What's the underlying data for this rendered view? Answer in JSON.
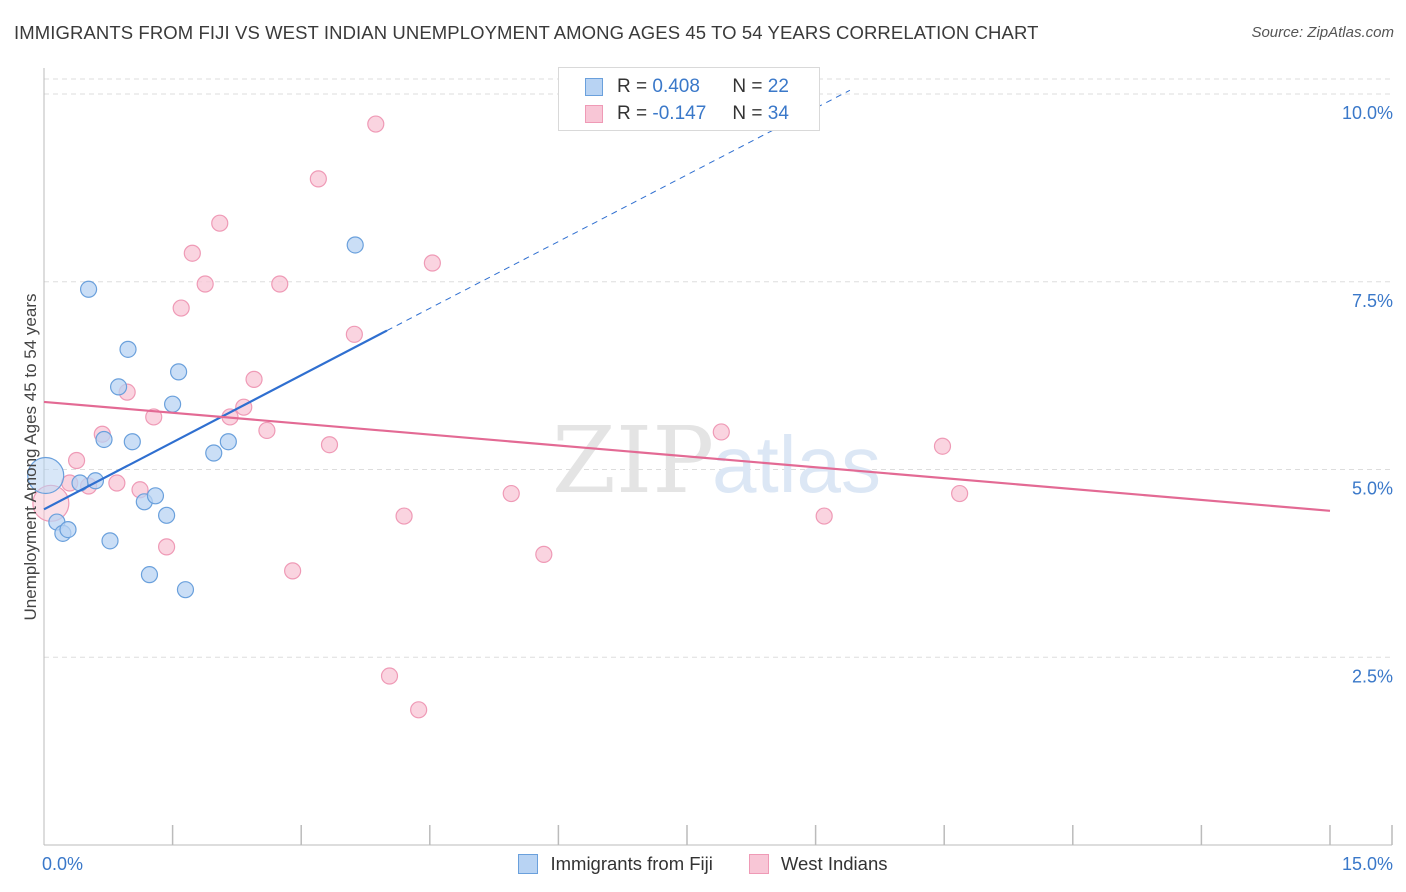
{
  "header": {
    "title": "IMMIGRANTS FROM FIJI VS WEST INDIAN UNEMPLOYMENT AMONG AGES 45 TO 54 YEARS CORRELATION CHART",
    "source": "Source: ZipAtlas.com"
  },
  "watermark": {
    "part1": "ZIP",
    "part2": "atlas"
  },
  "colors": {
    "fiji_fill": "#b8d3f3",
    "fiji_stroke": "#6aa0dc",
    "fiji_line": "#2f6fd0",
    "west_fill": "#f8c6d6",
    "west_stroke": "#ef9ab6",
    "west_line": "#e36a94",
    "axis_label": "#3a78c9",
    "grid": "#dddddd"
  },
  "legend": {
    "rows": [
      {
        "r_label": "R =",
        "r_value": "0.408",
        "n_label": "N =",
        "n_value": "22"
      },
      {
        "r_label": "R =",
        "r_value": "-0.147",
        "n_label": "N =",
        "n_value": "34"
      }
    ]
  },
  "chart_data": {
    "type": "scatter",
    "title": "IMMIGRANTS FROM FIJI VS WEST INDIAN UNEMPLOYMENT AMONG AGES 45 TO 54 YEARS CORRELATION CHART",
    "xlabel": "",
    "ylabel": "Unemployment Among Ages 45 to 54 years",
    "xlim": [
      0,
      15
    ],
    "ylim": [
      0,
      10.2
    ],
    "x_tick_labels": [
      {
        "value": 0,
        "label": "0.0%"
      },
      {
        "value": 15,
        "label": "15.0%"
      }
    ],
    "y_tick_labels": [
      {
        "value": 2.5,
        "label": "2.5%"
      },
      {
        "value": 5.0,
        "label": "5.0%"
      },
      {
        "value": 7.5,
        "label": "7.5%"
      },
      {
        "value": 10.0,
        "label": "10.0%"
      }
    ],
    "x_minor_ticks": [
      1.5,
      3.0,
      4.5,
      6.0,
      7.5,
      9.0,
      10.5,
      12.0,
      13.5
    ],
    "grid": true,
    "legend_position": "top-center",
    "series": [
      {
        "name": "Immigrants from Fiji",
        "r": 0.408,
        "n": 22,
        "trend": {
          "x0": 0.0,
          "y0": 4.47,
          "x1": 4.0,
          "y1": 6.85,
          "dashed_to_x": 9.4,
          "dashed_to_y": 10.05
        },
        "points": [
          {
            "x": 0.02,
            "y": 4.92,
            "size": "large"
          },
          {
            "x": 0.15,
            "y": 4.3
          },
          {
            "x": 0.22,
            "y": 4.15
          },
          {
            "x": 0.28,
            "y": 4.2
          },
          {
            "x": 0.42,
            "y": 4.82
          },
          {
            "x": 0.52,
            "y": 7.4
          },
          {
            "x": 0.6,
            "y": 4.85
          },
          {
            "x": 0.7,
            "y": 5.4
          },
          {
            "x": 0.77,
            "y": 4.05
          },
          {
            "x": 0.87,
            "y": 6.1
          },
          {
            "x": 0.98,
            "y": 6.6
          },
          {
            "x": 1.03,
            "y": 5.37
          },
          {
            "x": 1.17,
            "y": 4.57
          },
          {
            "x": 1.23,
            "y": 3.6
          },
          {
            "x": 1.3,
            "y": 4.65
          },
          {
            "x": 1.43,
            "y": 4.39
          },
          {
            "x": 1.5,
            "y": 5.87
          },
          {
            "x": 1.57,
            "y": 6.3
          },
          {
            "x": 1.65,
            "y": 3.4
          },
          {
            "x": 1.98,
            "y": 5.22
          },
          {
            "x": 2.15,
            "y": 5.37
          },
          {
            "x": 3.63,
            "y": 7.99
          }
        ]
      },
      {
        "name": "West Indians",
        "r": -0.147,
        "n": 34,
        "trend": {
          "x0": 0.0,
          "y0": 5.9,
          "x1": 15.0,
          "y1": 4.45
        },
        "points": [
          {
            "x": 0.08,
            "y": 4.55,
            "size": "large"
          },
          {
            "x": 0.38,
            "y": 5.12
          },
          {
            "x": 0.52,
            "y": 4.78
          },
          {
            "x": 0.68,
            "y": 5.47
          },
          {
            "x": 0.85,
            "y": 4.82
          },
          {
            "x": 0.97,
            "y": 6.03
          },
          {
            "x": 1.12,
            "y": 4.73
          },
          {
            "x": 1.28,
            "y": 5.7
          },
          {
            "x": 1.43,
            "y": 3.97
          },
          {
            "x": 1.6,
            "y": 7.15
          },
          {
            "x": 1.73,
            "y": 7.88
          },
          {
            "x": 1.88,
            "y": 7.47
          },
          {
            "x": 2.05,
            "y": 8.28
          },
          {
            "x": 2.17,
            "y": 5.7
          },
          {
            "x": 2.33,
            "y": 5.83
          },
          {
            "x": 2.45,
            "y": 6.2
          },
          {
            "x": 2.6,
            "y": 5.52
          },
          {
            "x": 2.75,
            "y": 7.47
          },
          {
            "x": 2.9,
            "y": 3.65
          },
          {
            "x": 3.2,
            "y": 8.87
          },
          {
            "x": 3.33,
            "y": 5.33
          },
          {
            "x": 3.62,
            "y": 6.8
          },
          {
            "x": 3.87,
            "y": 9.6
          },
          {
            "x": 4.03,
            "y": 2.25
          },
          {
            "x": 4.2,
            "y": 4.38
          },
          {
            "x": 4.37,
            "y": 1.8
          },
          {
            "x": 4.53,
            "y": 7.75
          },
          {
            "x": 5.45,
            "y": 4.68
          },
          {
            "x": 5.83,
            "y": 3.87
          },
          {
            "x": 7.9,
            "y": 5.5
          },
          {
            "x": 9.1,
            "y": 4.38
          },
          {
            "x": 10.48,
            "y": 5.31
          },
          {
            "x": 10.68,
            "y": 4.68
          },
          {
            "x": 0.3,
            "y": 4.82
          }
        ]
      }
    ]
  }
}
